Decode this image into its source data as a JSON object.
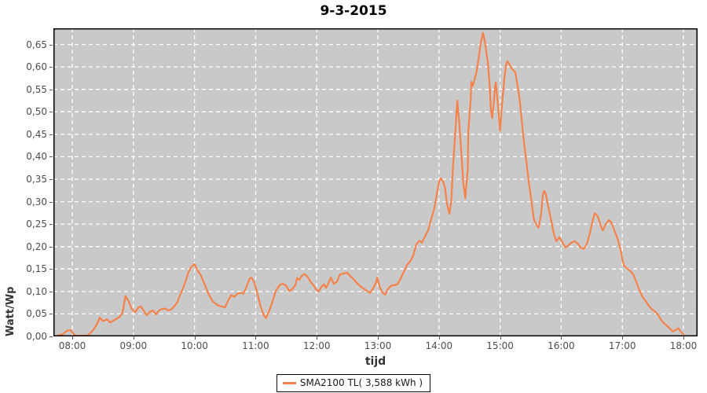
{
  "title": "9-3-2015",
  "colors": {
    "series_line": "#f5824b",
    "plot_background": "#c9c9c9",
    "gridline": "#ffffff",
    "plot_border": "#000000",
    "tick_label": "#4d4d4d",
    "outer_background": "#ffffff"
  },
  "chart_data": {
    "type": "line",
    "title": "9-3-2015",
    "xlabel": "tijd",
    "ylabel": "Watt/Wp",
    "grid": true,
    "legend": {
      "position": "bottom",
      "entries": [
        {
          "label": "SMA2100 TL( 3,588 kWh )",
          "color": "#f5824b"
        }
      ]
    },
    "x_ticks": [
      "08:00",
      "09:00",
      "10:00",
      "11:00",
      "12:00",
      "13:00",
      "14:00",
      "15:00",
      "16:00",
      "17:00",
      "18:00"
    ],
    "x_tick_hours": [
      8,
      9,
      10,
      11,
      12,
      13,
      14,
      15,
      16,
      17,
      18
    ],
    "xlim_hours": [
      7.6915,
      18.2314
    ],
    "y_ticks": [
      "0,00",
      "0,05",
      "0,10",
      "0,15",
      "0,20",
      "0,25",
      "0,30",
      "0,35",
      "0,40",
      "0,45",
      "0,50",
      "0,55",
      "0,60",
      "0,65"
    ],
    "y_tick_values": [
      0,
      0.05,
      0.1,
      0.15,
      0.2,
      0.25,
      0.3,
      0.35,
      0.4,
      0.45,
      0.5,
      0.55,
      0.6,
      0.65
    ],
    "ylim": [
      0,
      0.686
    ],
    "series": [
      {
        "name": "SMA2100 TL( 3,588 kWh )",
        "color": "#f5824b",
        "points": [
          [
            7.7,
            0.0
          ],
          [
            7.83,
            0.004
          ],
          [
            7.92,
            0.013
          ],
          [
            7.97,
            0.014
          ],
          [
            8.03,
            0.004
          ],
          [
            8.08,
            0.001
          ],
          [
            8.25,
            0.002
          ],
          [
            8.33,
            0.012
          ],
          [
            8.4,
            0.026
          ],
          [
            8.45,
            0.042
          ],
          [
            8.5,
            0.034
          ],
          [
            8.57,
            0.038
          ],
          [
            8.62,
            0.031
          ],
          [
            8.67,
            0.035
          ],
          [
            8.72,
            0.039
          ],
          [
            8.77,
            0.043
          ],
          [
            8.82,
            0.052
          ],
          [
            8.87,
            0.09
          ],
          [
            8.92,
            0.079
          ],
          [
            8.97,
            0.062
          ],
          [
            9.0,
            0.057
          ],
          [
            9.03,
            0.054
          ],
          [
            9.08,
            0.064
          ],
          [
            9.12,
            0.067
          ],
          [
            9.17,
            0.057
          ],
          [
            9.22,
            0.047
          ],
          [
            9.27,
            0.055
          ],
          [
            9.32,
            0.058
          ],
          [
            9.37,
            0.049
          ],
          [
            9.42,
            0.058
          ],
          [
            9.47,
            0.061
          ],
          [
            9.52,
            0.062
          ],
          [
            9.57,
            0.058
          ],
          [
            9.62,
            0.06
          ],
          [
            9.67,
            0.067
          ],
          [
            9.72,
            0.076
          ],
          [
            9.75,
            0.088
          ],
          [
            9.8,
            0.103
          ],
          [
            9.85,
            0.121
          ],
          [
            9.9,
            0.143
          ],
          [
            9.95,
            0.155
          ],
          [
            10.0,
            0.161
          ],
          [
            10.05,
            0.147
          ],
          [
            10.1,
            0.137
          ],
          [
            10.17,
            0.115
          ],
          [
            10.23,
            0.094
          ],
          [
            10.3,
            0.078
          ],
          [
            10.37,
            0.07
          ],
          [
            10.43,
            0.067
          ],
          [
            10.5,
            0.065
          ],
          [
            10.55,
            0.08
          ],
          [
            10.6,
            0.092
          ],
          [
            10.65,
            0.088
          ],
          [
            10.7,
            0.095
          ],
          [
            10.75,
            0.097
          ],
          [
            10.8,
            0.095
          ],
          [
            10.85,
            0.11
          ],
          [
            10.9,
            0.128
          ],
          [
            10.93,
            0.131
          ],
          [
            10.98,
            0.12
          ],
          [
            11.03,
            0.095
          ],
          [
            11.08,
            0.068
          ],
          [
            11.13,
            0.048
          ],
          [
            11.17,
            0.041
          ],
          [
            11.22,
            0.056
          ],
          [
            11.27,
            0.075
          ],
          [
            11.33,
            0.102
          ],
          [
            11.4,
            0.115
          ],
          [
            11.45,
            0.117
          ],
          [
            11.5,
            0.113
          ],
          [
            11.55,
            0.101
          ],
          [
            11.6,
            0.105
          ],
          [
            11.65,
            0.115
          ],
          [
            11.68,
            0.13
          ],
          [
            11.72,
            0.126
          ],
          [
            11.75,
            0.134
          ],
          [
            11.8,
            0.139
          ],
          [
            11.85,
            0.133
          ],
          [
            11.9,
            0.122
          ],
          [
            11.95,
            0.113
          ],
          [
            12.0,
            0.103
          ],
          [
            12.03,
            0.1
          ],
          [
            12.08,
            0.111
          ],
          [
            12.12,
            0.116
          ],
          [
            12.15,
            0.108
          ],
          [
            12.2,
            0.121
          ],
          [
            12.23,
            0.131
          ],
          [
            12.28,
            0.117
          ],
          [
            12.33,
            0.122
          ],
          [
            12.38,
            0.138
          ],
          [
            12.5,
            0.142
          ],
          [
            12.55,
            0.134
          ],
          [
            12.6,
            0.128
          ],
          [
            12.67,
            0.117
          ],
          [
            12.73,
            0.11
          ],
          [
            12.8,
            0.103
          ],
          [
            12.87,
            0.097
          ],
          [
            12.92,
            0.106
          ],
          [
            12.97,
            0.12
          ],
          [
            12.99,
            0.131
          ],
          [
            13.03,
            0.11
          ],
          [
            13.08,
            0.097
          ],
          [
            13.12,
            0.093
          ],
          [
            13.17,
            0.107
          ],
          [
            13.22,
            0.113
          ],
          [
            13.27,
            0.114
          ],
          [
            13.32,
            0.116
          ],
          [
            13.37,
            0.128
          ],
          [
            13.43,
            0.145
          ],
          [
            13.48,
            0.16
          ],
          [
            13.53,
            0.167
          ],
          [
            13.58,
            0.18
          ],
          [
            13.63,
            0.205
          ],
          [
            13.68,
            0.213
          ],
          [
            13.72,
            0.209
          ],
          [
            13.77,
            0.222
          ],
          [
            13.82,
            0.235
          ],
          [
            13.87,
            0.26
          ],
          [
            13.92,
            0.283
          ],
          [
            13.97,
            0.32
          ],
          [
            14.0,
            0.344
          ],
          [
            14.03,
            0.352
          ],
          [
            14.07,
            0.345
          ],
          [
            14.1,
            0.33
          ],
          [
            14.13,
            0.296
          ],
          [
            14.17,
            0.273
          ],
          [
            14.2,
            0.3
          ],
          [
            14.23,
            0.38
          ],
          [
            14.27,
            0.46
          ],
          [
            14.3,
            0.525
          ],
          [
            14.33,
            0.478
          ],
          [
            14.37,
            0.4
          ],
          [
            14.4,
            0.34
          ],
          [
            14.43,
            0.308
          ],
          [
            14.47,
            0.37
          ],
          [
            14.48,
            0.455
          ],
          [
            14.52,
            0.53
          ],
          [
            14.53,
            0.567
          ],
          [
            14.55,
            0.557
          ],
          [
            14.58,
            0.57
          ],
          [
            14.62,
            0.592
          ],
          [
            14.65,
            0.62
          ],
          [
            14.68,
            0.65
          ],
          [
            14.72,
            0.676
          ],
          [
            14.75,
            0.658
          ],
          [
            14.78,
            0.628
          ],
          [
            14.8,
            0.61
          ],
          [
            14.83,
            0.557
          ],
          [
            14.85,
            0.505
          ],
          [
            14.87,
            0.486
          ],
          [
            14.9,
            0.523
          ],
          [
            14.92,
            0.56
          ],
          [
            14.93,
            0.565
          ],
          [
            14.97,
            0.508
          ],
          [
            15.0,
            0.458
          ],
          [
            15.03,
            0.513
          ],
          [
            15.07,
            0.575
          ],
          [
            15.1,
            0.605
          ],
          [
            15.12,
            0.613
          ],
          [
            15.15,
            0.607
          ],
          [
            15.18,
            0.598
          ],
          [
            15.22,
            0.592
          ],
          [
            15.25,
            0.588
          ],
          [
            15.28,
            0.563
          ],
          [
            15.32,
            0.528
          ],
          [
            15.35,
            0.488
          ],
          [
            15.38,
            0.444
          ],
          [
            15.42,
            0.4
          ],
          [
            15.47,
            0.343
          ],
          [
            15.52,
            0.294
          ],
          [
            15.55,
            0.262
          ],
          [
            15.6,
            0.247
          ],
          [
            15.63,
            0.242
          ],
          [
            15.67,
            0.27
          ],
          [
            15.7,
            0.315
          ],
          [
            15.72,
            0.324
          ],
          [
            15.75,
            0.317
          ],
          [
            15.78,
            0.294
          ],
          [
            15.83,
            0.262
          ],
          [
            15.88,
            0.228
          ],
          [
            15.92,
            0.212
          ],
          [
            15.97,
            0.221
          ],
          [
            16.02,
            0.209
          ],
          [
            16.07,
            0.198
          ],
          [
            16.12,
            0.203
          ],
          [
            16.17,
            0.209
          ],
          [
            16.22,
            0.212
          ],
          [
            16.27,
            0.207
          ],
          [
            16.32,
            0.197
          ],
          [
            16.37,
            0.195
          ],
          [
            16.42,
            0.206
          ],
          [
            16.47,
            0.231
          ],
          [
            16.52,
            0.261
          ],
          [
            16.55,
            0.274
          ],
          [
            16.6,
            0.267
          ],
          [
            16.65,
            0.245
          ],
          [
            16.68,
            0.236
          ],
          [
            16.73,
            0.25
          ],
          [
            16.78,
            0.259
          ],
          [
            16.82,
            0.254
          ],
          [
            16.87,
            0.236
          ],
          [
            16.92,
            0.218
          ],
          [
            16.97,
            0.194
          ],
          [
            17.0,
            0.172
          ],
          [
            17.03,
            0.157
          ],
          [
            17.08,
            0.151
          ],
          [
            17.13,
            0.146
          ],
          [
            17.18,
            0.138
          ],
          [
            17.23,
            0.121
          ],
          [
            17.28,
            0.103
          ],
          [
            17.33,
            0.088
          ],
          [
            17.38,
            0.079
          ],
          [
            17.43,
            0.069
          ],
          [
            17.48,
            0.061
          ],
          [
            17.53,
            0.056
          ],
          [
            17.58,
            0.049
          ],
          [
            17.63,
            0.038
          ],
          [
            17.68,
            0.029
          ],
          [
            17.73,
            0.024
          ],
          [
            17.78,
            0.017
          ],
          [
            17.83,
            0.011
          ],
          [
            17.88,
            0.015
          ],
          [
            17.92,
            0.018
          ],
          [
            17.95,
            0.011
          ],
          [
            18.0,
            0.005
          ]
        ]
      }
    ]
  }
}
